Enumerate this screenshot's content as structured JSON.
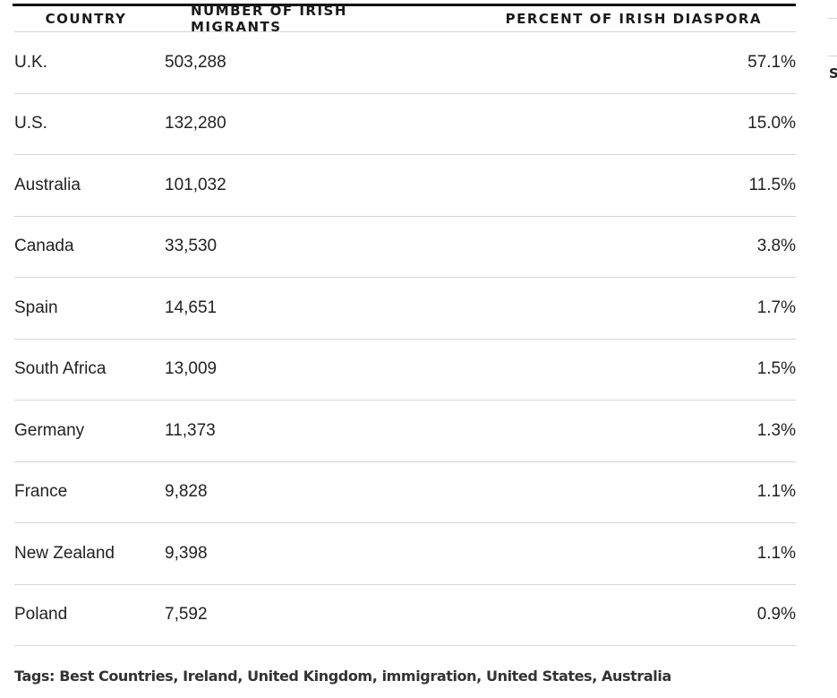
{
  "table": {
    "headers": {
      "country": "COUNTRY",
      "number": "NUMBER OF IRISH MIGRANTS",
      "percent": "PERCENT OF IRISH DIASPORA"
    },
    "rows": [
      {
        "country": "U.K.",
        "number": "503,288",
        "percent": "57.1%"
      },
      {
        "country": "U.S.",
        "number": "132,280",
        "percent": "15.0%"
      },
      {
        "country": "Australia",
        "number": "101,032",
        "percent": "11.5%"
      },
      {
        "country": "Canada",
        "number": "33,530",
        "percent": "3.8%"
      },
      {
        "country": "Spain",
        "number": "14,651",
        "percent": "1.7%"
      },
      {
        "country": "South Africa",
        "number": "13,009",
        "percent": "1.5%"
      },
      {
        "country": "Germany",
        "number": "11,373",
        "percent": "1.3%"
      },
      {
        "country": "France",
        "number": "9,828",
        "percent": "1.1%"
      },
      {
        "country": "New Zealand",
        "number": "9,398",
        "percent": "1.1%"
      },
      {
        "country": "Poland",
        "number": "7,592",
        "percent": "0.9%"
      }
    ]
  },
  "tags": {
    "label": "Tags:",
    "items": [
      "Best Countries",
      "Ireland",
      "United Kingdom",
      "immigration",
      "United States",
      "Australia"
    ]
  },
  "sidebar_fragment": {
    "letter": "S"
  }
}
